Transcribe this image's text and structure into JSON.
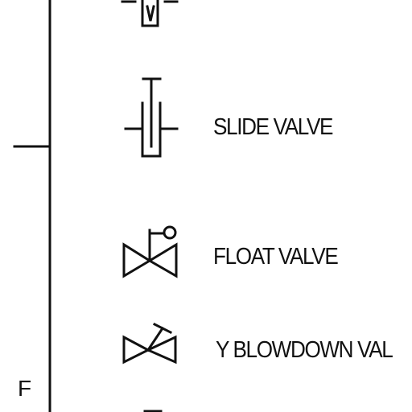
{
  "zone_letter": "F",
  "rows": [
    {
      "label": "SLIDE VALVE",
      "icon": "slide-valve-icon"
    },
    {
      "label": "FLOAT VALVE",
      "icon": "float-valve-icon"
    },
    {
      "label": "Y BLOWDOWN VAL",
      "icon": "y-blowdown-valve-icon"
    }
  ],
  "colors": {
    "ink": "#111111",
    "background": "#ffffff"
  }
}
